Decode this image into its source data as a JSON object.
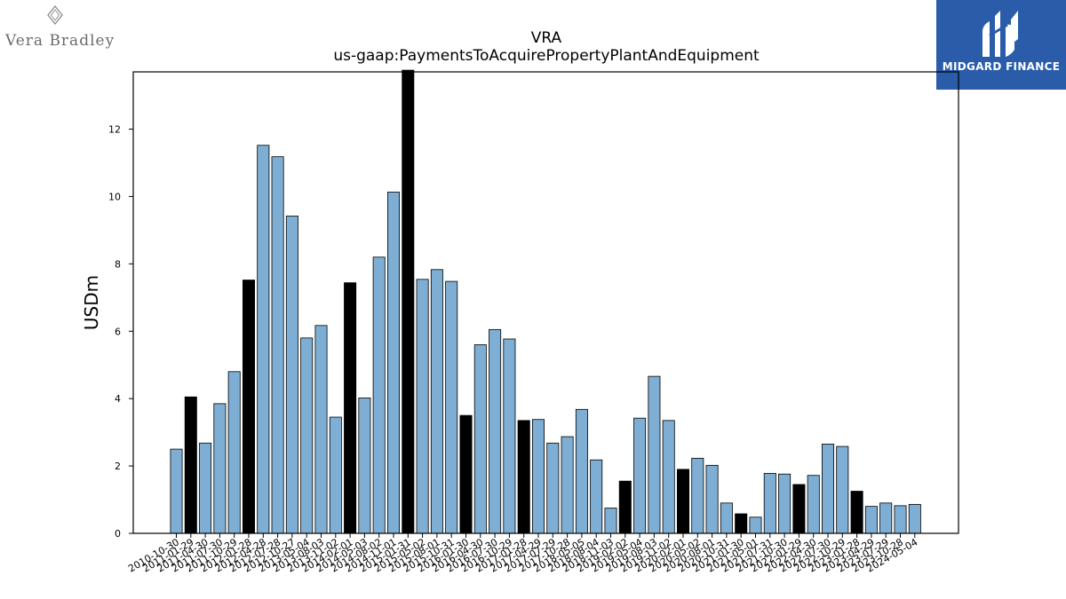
{
  "logos": {
    "left_text": "Vera Bradley",
    "right_text": "MIDGARD FINANCE"
  },
  "colors": {
    "bar_default": "#7eaed3",
    "bar_highlight": "#000000",
    "logo_bg": "#2a5caa"
  },
  "chart_data": {
    "type": "bar",
    "title": "VRA",
    "subtitle": "us-gaap:PaymentsToAcquirePropertyPlantAndEquipment",
    "ylabel": "USDm",
    "xlabel": "",
    "ylim": [
      0,
      13.7
    ],
    "yticks": [
      0,
      2,
      4,
      6,
      8,
      10,
      12
    ],
    "grid": false,
    "categories": [
      "2010-10-30",
      "2011-01-29",
      "2011-04-30",
      "2011-07-30",
      "2011-10-29",
      "2012-01-28",
      "2012-04-28",
      "2012-07-28",
      "2012-10-27",
      "2013-05-04",
      "2013-08-03",
      "2013-11-02",
      "2014-02-01",
      "2014-05-03",
      "2014-08-02",
      "2014-11-01",
      "2015-01-31",
      "2015-05-02",
      "2015-08-01",
      "2015-10-31",
      "2016-01-30",
      "2016-04-30",
      "2016-07-30",
      "2016-10-29",
      "2017-01-28",
      "2017-04-29",
      "2017-07-29",
      "2017-10-28",
      "2018-05-05",
      "2018-08-04",
      "2018-11-03",
      "2019-02-02",
      "2019-05-04",
      "2019-08-03",
      "2019-11-02",
      "2020-02-01",
      "2020-05-02",
      "2020-08-01",
      "2020-10-31",
      "2021-01-30",
      "2021-05-01",
      "2021-07-31",
      "2021-10-30",
      "2022-01-29",
      "2022-04-30",
      "2022-07-30",
      "2022-10-29",
      "2023-01-28",
      "2023-04-29",
      "2023-07-29",
      "2023-10-28",
      "2024-05-04"
    ],
    "values": [
      2.5,
      4.05,
      2.68,
      3.85,
      4.8,
      7.52,
      11.52,
      11.18,
      9.42,
      5.8,
      6.17,
      3.45,
      7.44,
      4.02,
      8.2,
      10.13,
      13.75,
      7.54,
      7.83,
      7.48,
      3.5,
      5.6,
      6.05,
      5.77,
      3.35,
      3.38,
      2.68,
      2.87,
      3.68,
      2.18,
      0.75,
      1.55,
      3.42,
      4.66,
      3.35,
      1.9,
      2.23,
      2.02,
      0.9,
      0.58,
      0.48,
      1.78,
      1.76,
      1.45,
      1.72,
      2.65,
      2.58,
      1.25,
      0.8,
      0.9,
      0.82,
      0.86
    ],
    "highlight": [
      false,
      true,
      false,
      false,
      false,
      true,
      false,
      false,
      false,
      false,
      false,
      false,
      true,
      false,
      false,
      false,
      true,
      false,
      false,
      false,
      true,
      false,
      false,
      false,
      true,
      false,
      false,
      false,
      false,
      false,
      false,
      true,
      false,
      false,
      false,
      true,
      false,
      false,
      false,
      true,
      false,
      false,
      false,
      true,
      false,
      false,
      false,
      true,
      false,
      false,
      false,
      false
    ]
  }
}
